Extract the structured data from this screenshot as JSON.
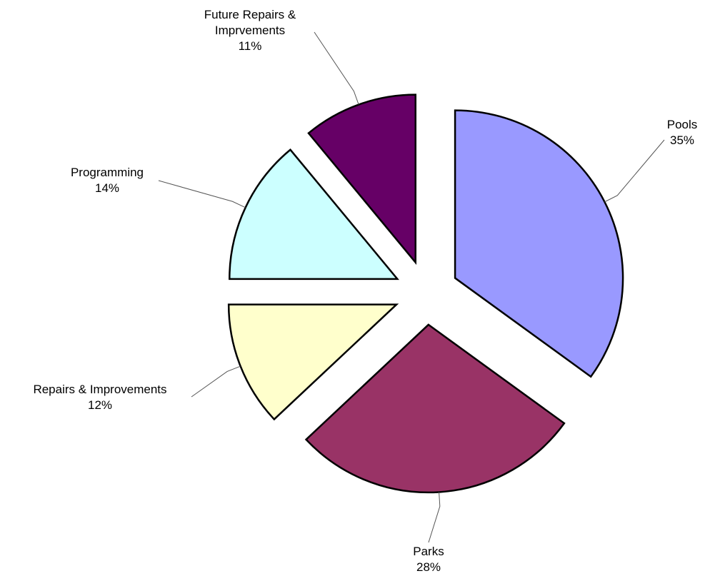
{
  "chart_data": {
    "type": "pie",
    "categories": [
      "Pools",
      "Parks",
      "Repairs & Improvements",
      "Programming",
      "Future Repairs & Imprvements"
    ],
    "values": [
      35,
      28,
      12,
      14,
      11
    ],
    "value_labels": [
      "35%",
      "28%",
      "12%",
      "14%",
      "11%"
    ],
    "colors": [
      "#9999ff",
      "#993366",
      "#ffffcc",
      "#ccffff",
      "#660066"
    ],
    "exploded": true
  }
}
